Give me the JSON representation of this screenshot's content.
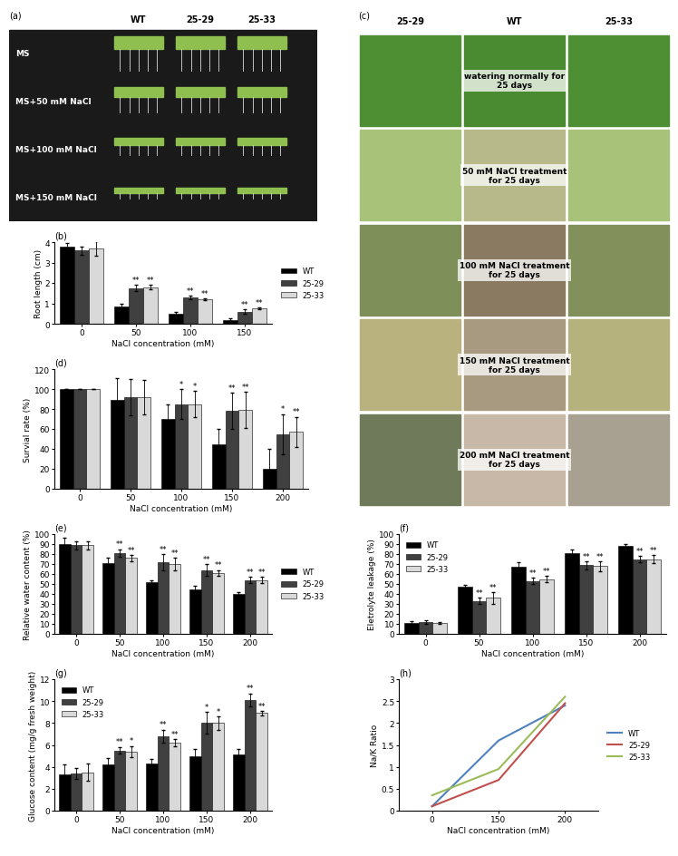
{
  "photos": [
    {
      "label": "(a)",
      "columns": [
        "WT",
        "25-29",
        "25-33"
      ],
      "rows": [
        "MS",
        "MS+50 mM NaCl",
        "MS+100 mM NaCl",
        "MS+150 mM NaCl"
      ]
    },
    {
      "label": "(c)",
      "columns": [
        "25-29",
        "WT",
        "25-33"
      ],
      "rows": [
        "watering normally for 25 days",
        "50 mM NaCl treatment for 25 days",
        "100 mM NaCl treatment for 25 days",
        "150 mM NaCl treatment for 25 days",
        "200 mM NaCl treatment for 25 days"
      ]
    }
  ],
  "chart_data": [
    {
      "type": "bar",
      "title": "(b)",
      "x_label": "NaCl concentration (mM)",
      "y_label": "Root length (cm)",
      "categories": [
        "0",
        "50",
        "100",
        "150"
      ],
      "ylim": [
        0,
        4
      ],
      "yticks": [
        0,
        1,
        2,
        3,
        4
      ],
      "legend": "right",
      "series": [
        {
          "name": "WT",
          "color": "#000000",
          "values": [
            3.8,
            0.85,
            0.5,
            0.2
          ],
          "error": [
            0.15,
            0.12,
            0.1,
            0.05
          ]
        },
        {
          "name": "25-29",
          "color": "#404040",
          "values": [
            3.6,
            1.75,
            1.3,
            0.6
          ],
          "error": [
            0.2,
            0.15,
            0.08,
            0.1
          ],
          "annotations": [
            null,
            "**",
            "**",
            "**"
          ]
        },
        {
          "name": "25-33",
          "color": "#d9d9d9",
          "values": [
            3.7,
            1.8,
            1.2,
            0.75
          ],
          "error": [
            0.35,
            0.12,
            0.05,
            0.05
          ],
          "annotations": [
            null,
            "**",
            "**",
            "**"
          ]
        }
      ]
    },
    {
      "type": "bar",
      "title": "(d)",
      "x_label": "NaCl concentration (mM)",
      "y_label": "Survial rate (%)",
      "categories": [
        "0",
        "50",
        "100",
        "150",
        "200"
      ],
      "ylim": [
        0,
        120
      ],
      "yticks": [
        0,
        20,
        40,
        60,
        80,
        100,
        120
      ],
      "series": [
        {
          "color": "#000000",
          "values": [
            100,
            89,
            70,
            45,
            20
          ],
          "error": [
            0,
            22,
            15,
            15,
            20
          ]
        },
        {
          "color": "#404040",
          "values": [
            100,
            92,
            85,
            78,
            55
          ],
          "error": [
            0,
            18,
            15,
            18,
            20
          ],
          "annotations": [
            null,
            null,
            "*",
            "**",
            "*"
          ]
        },
        {
          "color": "#d9d9d9",
          "values": [
            100,
            92,
            85,
            79,
            57
          ],
          "error": [
            0,
            17,
            13,
            18,
            15
          ],
          "annotations": [
            null,
            null,
            "*",
            "**",
            "**"
          ]
        }
      ]
    },
    {
      "type": "bar",
      "title": "(e)",
      "x_label": "NaCl concentration (mM)",
      "y_label": "Relative water content (%)",
      "categories": [
        "0",
        "50",
        "100",
        "150",
        "200"
      ],
      "ylim": [
        0,
        100
      ],
      "yticks": [
        0,
        10,
        20,
        30,
        40,
        50,
        60,
        70,
        80,
        90,
        100
      ],
      "legend": "right",
      "series": [
        {
          "name": "WT",
          "color": "#000000",
          "values": [
            90,
            71,
            52,
            45,
            40
          ],
          "error": [
            6,
            5,
            2,
            3,
            2
          ]
        },
        {
          "name": "25-29",
          "color": "#404040",
          "values": [
            89,
            81,
            72,
            64,
            54
          ],
          "error": [
            4,
            4,
            8,
            6,
            3
          ],
          "annotations": [
            null,
            "**",
            "**",
            "**",
            "**"
          ]
        },
        {
          "name": "25-33",
          "color": "#d9d9d9",
          "values": [
            89,
            76,
            70,
            61,
            54
          ],
          "error": [
            4,
            3,
            6,
            3,
            3
          ],
          "annotations": [
            null,
            "**",
            "**",
            "**",
            "**"
          ]
        }
      ]
    },
    {
      "type": "bar",
      "title": "(f)",
      "x_label": "NaCl concentration (mM)",
      "y_label": "Eletrolyte leakage (%)",
      "categories": [
        "0",
        "50",
        "100",
        "150",
        "200"
      ],
      "ylim": [
        0,
        100
      ],
      "yticks": [
        0,
        10,
        20,
        30,
        40,
        50,
        60,
        70,
        80,
        90,
        100
      ],
      "legend": "upper left",
      "series": [
        {
          "name": "WT",
          "color": "#000000",
          "values": [
            11,
            47,
            67,
            81,
            88
          ],
          "error": [
            2,
            2,
            5,
            4,
            2
          ]
        },
        {
          "name": "25-29",
          "color": "#404040",
          "values": [
            12,
            33,
            53,
            69,
            75
          ],
          "error": [
            2,
            3,
            3,
            4,
            3
          ],
          "annotations": [
            null,
            "**",
            "**",
            "**",
            "**"
          ]
        },
        {
          "name": "25-33",
          "color": "#d9d9d9",
          "values": [
            11,
            36,
            55,
            68,
            75
          ],
          "error": [
            1,
            6,
            3,
            5,
            4
          ],
          "annotations": [
            null,
            "**",
            "**",
            "**",
            "**"
          ]
        }
      ]
    },
    {
      "type": "bar",
      "title": "(g)",
      "x_label": "NaCl concentration (mM)",
      "y_label": "Glucose content (mg/g fresh weight)",
      "categories": [
        "0",
        "50",
        "100",
        "150",
        "200"
      ],
      "ylim": [
        0,
        12
      ],
      "yticks": [
        0,
        2,
        4,
        6,
        8,
        10,
        12
      ],
      "legend": "upper left",
      "series": [
        {
          "name": "WT",
          "color": "#000000",
          "values": [
            3.3,
            4.2,
            4.3,
            5.0,
            5.1
          ],
          "error": [
            0.9,
            0.6,
            0.4,
            0.6,
            0.5
          ]
        },
        {
          "name": "25-29",
          "color": "#404040",
          "values": [
            3.4,
            5.5,
            6.8,
            8.0,
            10.1
          ],
          "error": [
            0.5,
            0.3,
            0.6,
            1.0,
            0.6
          ],
          "annotations": [
            null,
            "**",
            "**",
            "*",
            "**"
          ]
        },
        {
          "name": "25-33",
          "color": "#d9d9d9",
          "values": [
            3.5,
            5.4,
            6.2,
            8.0,
            8.9
          ],
          "error": [
            0.8,
            0.5,
            0.3,
            0.6,
            0.2
          ],
          "annotations": [
            null,
            "*",
            "**",
            "*",
            "**"
          ]
        }
      ]
    },
    {
      "type": "line",
      "title": "(h)",
      "x_label": "NaCl concentration (mM)",
      "y_label": "Na/K Ratio",
      "categories": [
        "0",
        "150",
        "200"
      ],
      "ylim": [
        0,
        3
      ],
      "yticks": [
        0,
        0.5,
        1,
        1.5,
        2,
        2.5,
        3
      ],
      "legend": "right",
      "series": [
        {
          "name": "WT",
          "color": "#4f81bd",
          "line_style": "solid",
          "values": [
            0.1,
            1.6,
            2.4
          ]
        },
        {
          "name": "25-29",
          "color": "#c0504d",
          "line_style": "solid",
          "values": [
            0.1,
            0.7,
            2.45
          ]
        },
        {
          "name": "25-33",
          "color": "#9bbb59",
          "line_style": "solid",
          "values": [
            0.35,
            0.95,
            2.6
          ]
        }
      ]
    }
  ]
}
